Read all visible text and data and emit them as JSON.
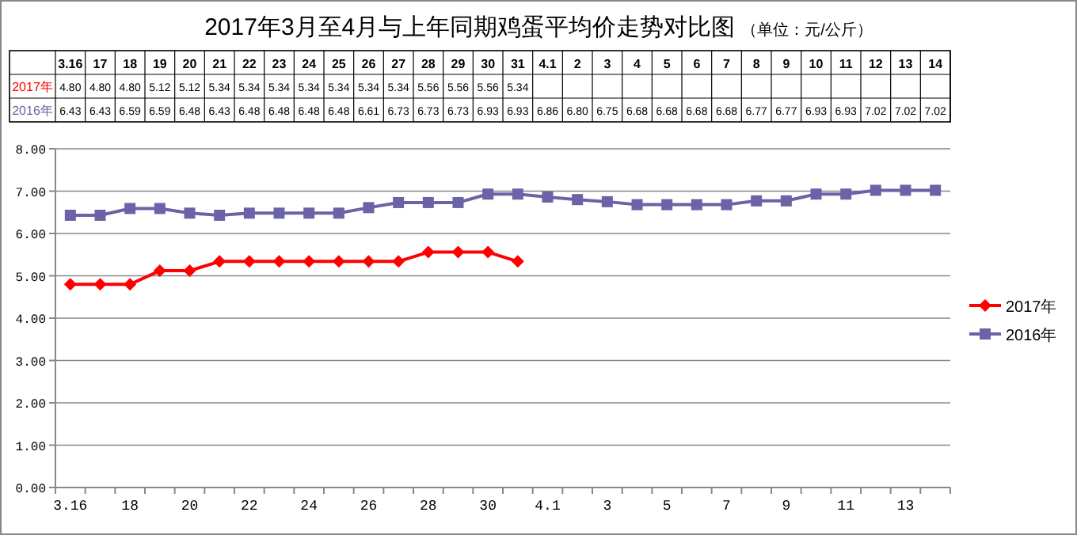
{
  "chart_data": {
    "type": "line",
    "title": "2017年3月至4月与上年同期鸡蛋平均价走势对比图",
    "subtitle": "（单位：元/公斤）",
    "categories": [
      "3.16",
      "17",
      "18",
      "19",
      "20",
      "21",
      "22",
      "23",
      "24",
      "25",
      "26",
      "27",
      "28",
      "29",
      "30",
      "31",
      "4.1",
      "2",
      "3",
      "4",
      "5",
      "6",
      "7",
      "8",
      "9",
      "10",
      "11",
      "12",
      "13",
      "14"
    ],
    "series": [
      {
        "name": "2017年",
        "color": "#ff0000",
        "marker": "diamond",
        "values": [
          4.8,
          4.8,
          4.8,
          5.12,
          5.12,
          5.34,
          5.34,
          5.34,
          5.34,
          5.34,
          5.34,
          5.34,
          5.56,
          5.56,
          5.56,
          5.34,
          null,
          null,
          null,
          null,
          null,
          null,
          null,
          null,
          null,
          null,
          null,
          null,
          null,
          null
        ],
        "value_labels": [
          "4.80",
          "4.80",
          "4.80",
          "5.12",
          "5.12",
          "5.34",
          "5.34",
          "5.34",
          "5.34",
          "5.34",
          "5.34",
          "5.34",
          "5.56",
          "5.56",
          "5.56",
          "5.34",
          null,
          null,
          null,
          null,
          null,
          null,
          null,
          null,
          null,
          null,
          null,
          null,
          null,
          null
        ]
      },
      {
        "name": "2016年",
        "color": "#6b63a8",
        "marker": "square",
        "values": [
          6.43,
          6.43,
          6.59,
          6.59,
          6.48,
          6.43,
          6.48,
          6.48,
          6.48,
          6.48,
          6.61,
          6.73,
          6.73,
          6.73,
          6.93,
          6.93,
          6.86,
          6.8,
          6.75,
          6.68,
          6.68,
          6.68,
          6.68,
          6.77,
          6.77,
          6.93,
          6.93,
          7.02,
          7.02,
          7.02
        ],
        "value_labels": [
          "6.43",
          "6.43",
          "6.59",
          "6.59",
          "6.48",
          "6.43",
          "6.48",
          "6.48",
          "6.48",
          "6.48",
          "6.61",
          "6.73",
          "6.73",
          "6.73",
          "6.93",
          "6.93",
          "6.86",
          "6.80",
          "6.75",
          "6.68",
          "6.68",
          "6.68",
          "6.68",
          "6.77",
          "6.77",
          "6.93",
          "6.93",
          "7.02",
          "7.02",
          "7.02"
        ]
      }
    ],
    "ylim": [
      0,
      8
    ],
    "yticks": [
      {
        "value": 0,
        "label": "0.00"
      },
      {
        "value": 1,
        "label": "1.00"
      },
      {
        "value": 2,
        "label": "2.00"
      },
      {
        "value": 3,
        "label": "3.00"
      },
      {
        "value": 4,
        "label": "4.00"
      },
      {
        "value": 5,
        "label": "5.00"
      },
      {
        "value": 6,
        "label": "6.00"
      },
      {
        "value": 7,
        "label": "7.00"
      },
      {
        "value": 8,
        "label": "8.00"
      }
    ],
    "grid": "y",
    "legend": "right",
    "line_style": "solid"
  }
}
